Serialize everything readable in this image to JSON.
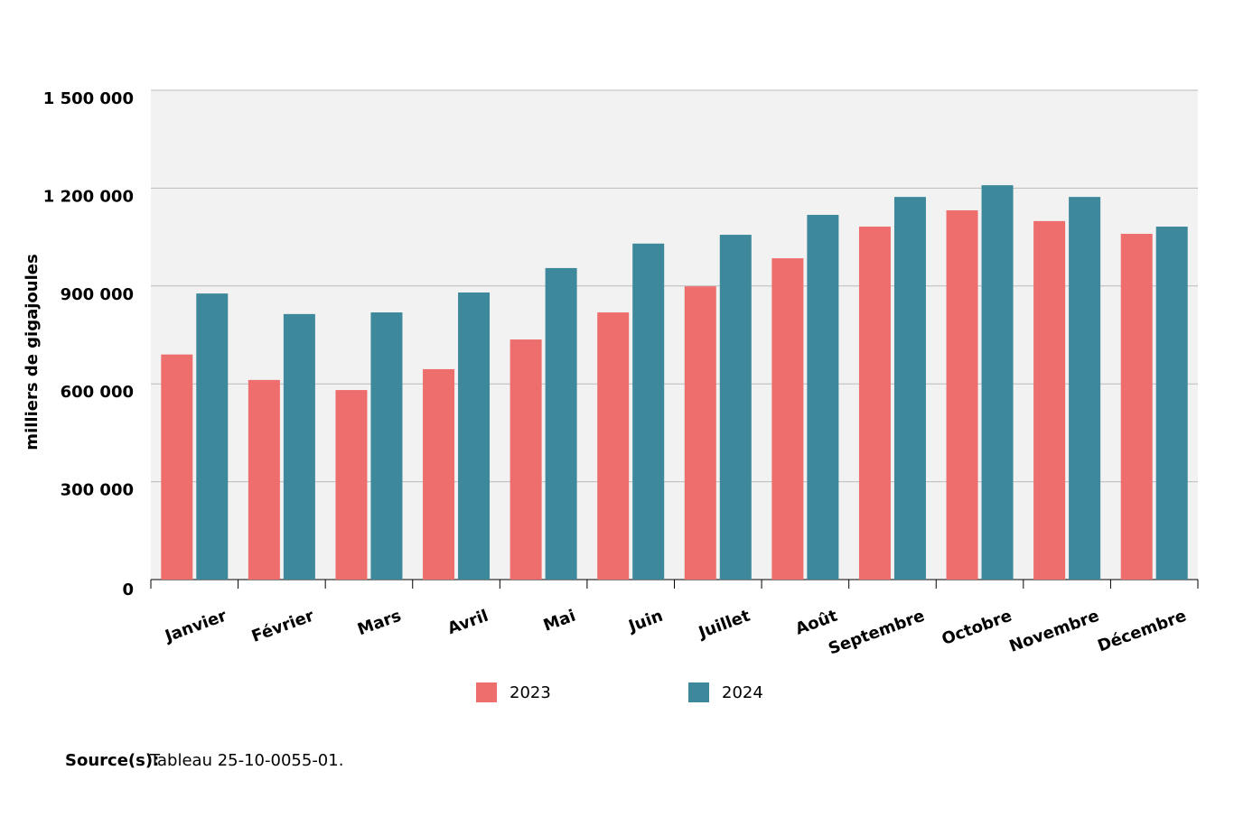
{
  "chart_data": {
    "type": "bar",
    "y_label": "milliers de gigajoules",
    "categories": [
      "Janvier",
      "Février",
      "Mars",
      "Avril",
      "Mai",
      "Juin",
      "Juillet",
      "Août",
      "Septembre",
      "Octobre",
      "Novembre",
      "Décembre"
    ],
    "series": [
      {
        "name": "2023",
        "color": "#ee6e6e",
        "values": [
          690000,
          612000,
          581000,
          645000,
          736000,
          819000,
          899000,
          985000,
          1082000,
          1132000,
          1099000,
          1060000
        ]
      },
      {
        "name": "2024",
        "color": "#3d889b",
        "values": [
          877000,
          814000,
          819000,
          880000,
          955000,
          1030000,
          1057000,
          1118000,
          1173000,
          1209000,
          1173000,
          1082000
        ]
      }
    ],
    "ylim": [
      0,
      1500000
    ],
    "yticks": [
      0,
      {
        "value": 300000,
        "label": "300 000"
      },
      {
        "value": 600000,
        "label": "600 000"
      },
      {
        "value": 900000,
        "label": "900 000"
      },
      {
        "value": 1200000,
        "label": "1 200 000"
      },
      {
        "value": 1500000,
        "label": "1 500 000"
      }
    ],
    "grid": true,
    "source_label": "Source(s):",
    "source": "Tableau 25-10-0055-01."
  }
}
